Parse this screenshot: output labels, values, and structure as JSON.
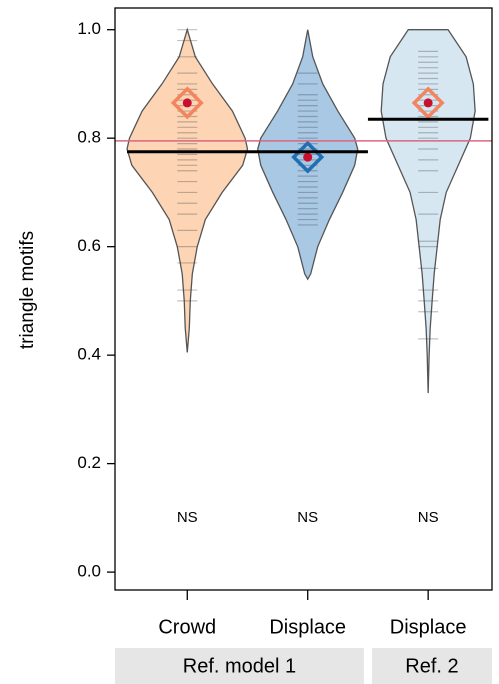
{
  "chart_data": {
    "type": "violin",
    "y_label": "triangle motifs",
    "categories": [
      "Crowd",
      "Displace",
      "Displace"
    ],
    "groups": [
      {
        "name": "Ref. model 1",
        "span": 2
      },
      {
        "name": "Ref. 2",
        "span": 1
      }
    ],
    "xlim": [
      0.4,
      3.53
    ],
    "ylim": [
      -0.033,
      1.04
    ],
    "yticks": [
      {
        "value": 0,
        "label": "0.0"
      },
      0.2,
      0.4,
      0.6,
      0.8,
      {
        "value": 1,
        "label": "1.0"
      }
    ],
    "reference_line": {
      "value": 0.795,
      "color": "#d9667f"
    },
    "annotations": [
      "NS",
      "NS",
      "NS"
    ],
    "series": [
      {
        "fill": "#fdd5b4",
        "diamond_color": "#f4845f",
        "median": 0.775,
        "mean": 0.865,
        "density_y": [
          0.405,
          0.45,
          0.5,
          0.55,
          0.6,
          0.65,
          0.7,
          0.75,
          0.78,
          0.8,
          0.85,
          0.9,
          0.95,
          1.0
        ],
        "density_w": [
          0,
          0.017,
          0.025,
          0.042,
          0.083,
          0.15,
          0.29,
          0.46,
          0.5,
          0.48,
          0.375,
          0.21,
          0.067,
          0
        ],
        "points": [
          1.0,
          0.98,
          0.95,
          0.92,
          0.9,
          0.89,
          0.88,
          0.87,
          0.86,
          0.85,
          0.84,
          0.83,
          0.82,
          0.81,
          0.8,
          0.79,
          0.78,
          0.77,
          0.76,
          0.75,
          0.74,
          0.72,
          0.7,
          0.68,
          0.66,
          0.63,
          0.6,
          0.57,
          0.52,
          0.5
        ]
      },
      {
        "fill": "#a8c8e4",
        "diamond_color": "#1f6fb2",
        "median": 0.775,
        "mean": 0.765,
        "density_y": [
          0.54,
          0.55,
          0.6,
          0.65,
          0.7,
          0.75,
          0.78,
          0.8,
          0.85,
          0.9,
          0.95,
          1.0
        ],
        "density_w": [
          0,
          0.025,
          0.083,
          0.18,
          0.29,
          0.39,
          0.415,
          0.39,
          0.25,
          0.125,
          0.042,
          0
        ],
        "points": [
          0.92,
          0.9,
          0.88,
          0.87,
          0.86,
          0.85,
          0.84,
          0.83,
          0.82,
          0.81,
          0.8,
          0.79,
          0.78,
          0.77,
          0.76,
          0.75,
          0.74,
          0.73,
          0.72,
          0.71,
          0.7,
          0.69,
          0.68,
          0.67,
          0.66,
          0.65,
          0.64
        ]
      },
      {
        "fill": "#d6e7f2",
        "diamond_color": "#f4845f",
        "median": 0.835,
        "mean": 0.865,
        "density_y": [
          0.33,
          0.4,
          0.45,
          0.5,
          0.55,
          0.6,
          0.65,
          0.7,
          0.75,
          0.8,
          0.85,
          0.9,
          0.95,
          1.0
        ],
        "density_w": [
          0,
          0.008,
          0.017,
          0.033,
          0.05,
          0.075,
          0.1,
          0.15,
          0.25,
          0.35,
          0.39,
          0.375,
          0.315,
          0.165
        ],
        "points": [
          0.96,
          0.95,
          0.94,
          0.93,
          0.92,
          0.91,
          0.9,
          0.89,
          0.88,
          0.87,
          0.86,
          0.85,
          0.84,
          0.83,
          0.82,
          0.81,
          0.8,
          0.78,
          0.76,
          0.74,
          0.7,
          0.66,
          0.61,
          0.6,
          0.56,
          0.52,
          0.5,
          0.48,
          0.43
        ]
      }
    ]
  }
}
